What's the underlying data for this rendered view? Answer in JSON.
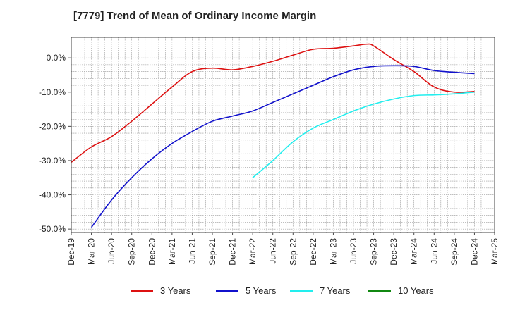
{
  "title": "[7779]  Trend of Mean of Ordinary Income Margin",
  "chart_data": {
    "type": "line",
    "title": "[7779]  Trend of Mean of Ordinary Income Margin",
    "xlabel": "",
    "ylabel": "",
    "x_ticks": [
      "Dec-19",
      "Mar-20",
      "Jun-20",
      "Sep-20",
      "Dec-20",
      "Mar-21",
      "Jun-21",
      "Sep-21",
      "Dec-21",
      "Mar-22",
      "Jun-22",
      "Sep-22",
      "Dec-22",
      "Mar-23",
      "Jun-23",
      "Sep-23",
      "Dec-23",
      "Mar-24",
      "Jun-24",
      "Sep-24",
      "Dec-24",
      "Mar-25"
    ],
    "y_ticks": [
      "0.0%",
      "-10.0%",
      "-20.0%",
      "-30.0%",
      "-40.0%",
      "-50.0%"
    ],
    "y_tick_values": [
      0,
      -10,
      -20,
      -30,
      -40,
      -50
    ],
    "ylim": [
      -51,
      6
    ],
    "grid": true,
    "legend_position": "bottom",
    "series": [
      {
        "name": "3 Years",
        "color": "#dd1111",
        "x": [
          "Dec-19",
          "Mar-20",
          "Jun-20",
          "Sep-20",
          "Dec-20",
          "Mar-21",
          "Jun-21",
          "Sep-21",
          "Dec-21",
          "Mar-22",
          "Jun-22",
          "Sep-22",
          "Dec-22",
          "Mar-23",
          "Jun-23",
          "Aug-23",
          "Sep-23",
          "Dec-23",
          "Mar-24",
          "Jun-24",
          "Sep-24",
          "Dec-24"
        ],
        "values": [
          -30.5,
          -26.0,
          -23.0,
          -18.5,
          -13.5,
          -8.5,
          -4.0,
          -3.0,
          -3.5,
          -2.5,
          -1.0,
          0.8,
          2.5,
          2.8,
          3.5,
          4.0,
          3.5,
          -0.5,
          -4.0,
          -8.5,
          -10.0,
          -9.8
        ]
      },
      {
        "name": "5 Years",
        "color": "#1111cc",
        "x": [
          "Mar-20",
          "Jun-20",
          "Sep-20",
          "Dec-20",
          "Mar-21",
          "Jun-21",
          "Sep-21",
          "Dec-21",
          "Mar-22",
          "Jun-22",
          "Sep-22",
          "Dec-22",
          "Mar-23",
          "Jun-23",
          "Sep-23",
          "Dec-23",
          "Mar-24",
          "Jun-24",
          "Sep-24",
          "Dec-24"
        ],
        "values": [
          -49.5,
          -41.5,
          -35.0,
          -29.5,
          -25.0,
          -21.5,
          -18.5,
          -17.0,
          -15.5,
          -13.0,
          -10.5,
          -8.0,
          -5.5,
          -3.5,
          -2.5,
          -2.3,
          -2.5,
          -3.7,
          -4.2,
          -4.6
        ]
      },
      {
        "name": "7 Years",
        "color": "#22eeee",
        "x": [
          "Mar-22",
          "Jun-22",
          "Sep-22",
          "Dec-22",
          "Mar-23",
          "Jun-23",
          "Sep-23",
          "Dec-23",
          "Mar-24",
          "Jun-24",
          "Sep-24",
          "Dec-24"
        ],
        "values": [
          -35.0,
          -30.0,
          -24.5,
          -20.5,
          -18.0,
          -15.5,
          -13.5,
          -12.0,
          -11.0,
          -10.8,
          -10.5,
          -10.0
        ]
      },
      {
        "name": "10 Years",
        "color": "#118811",
        "x": [],
        "values": []
      }
    ]
  }
}
